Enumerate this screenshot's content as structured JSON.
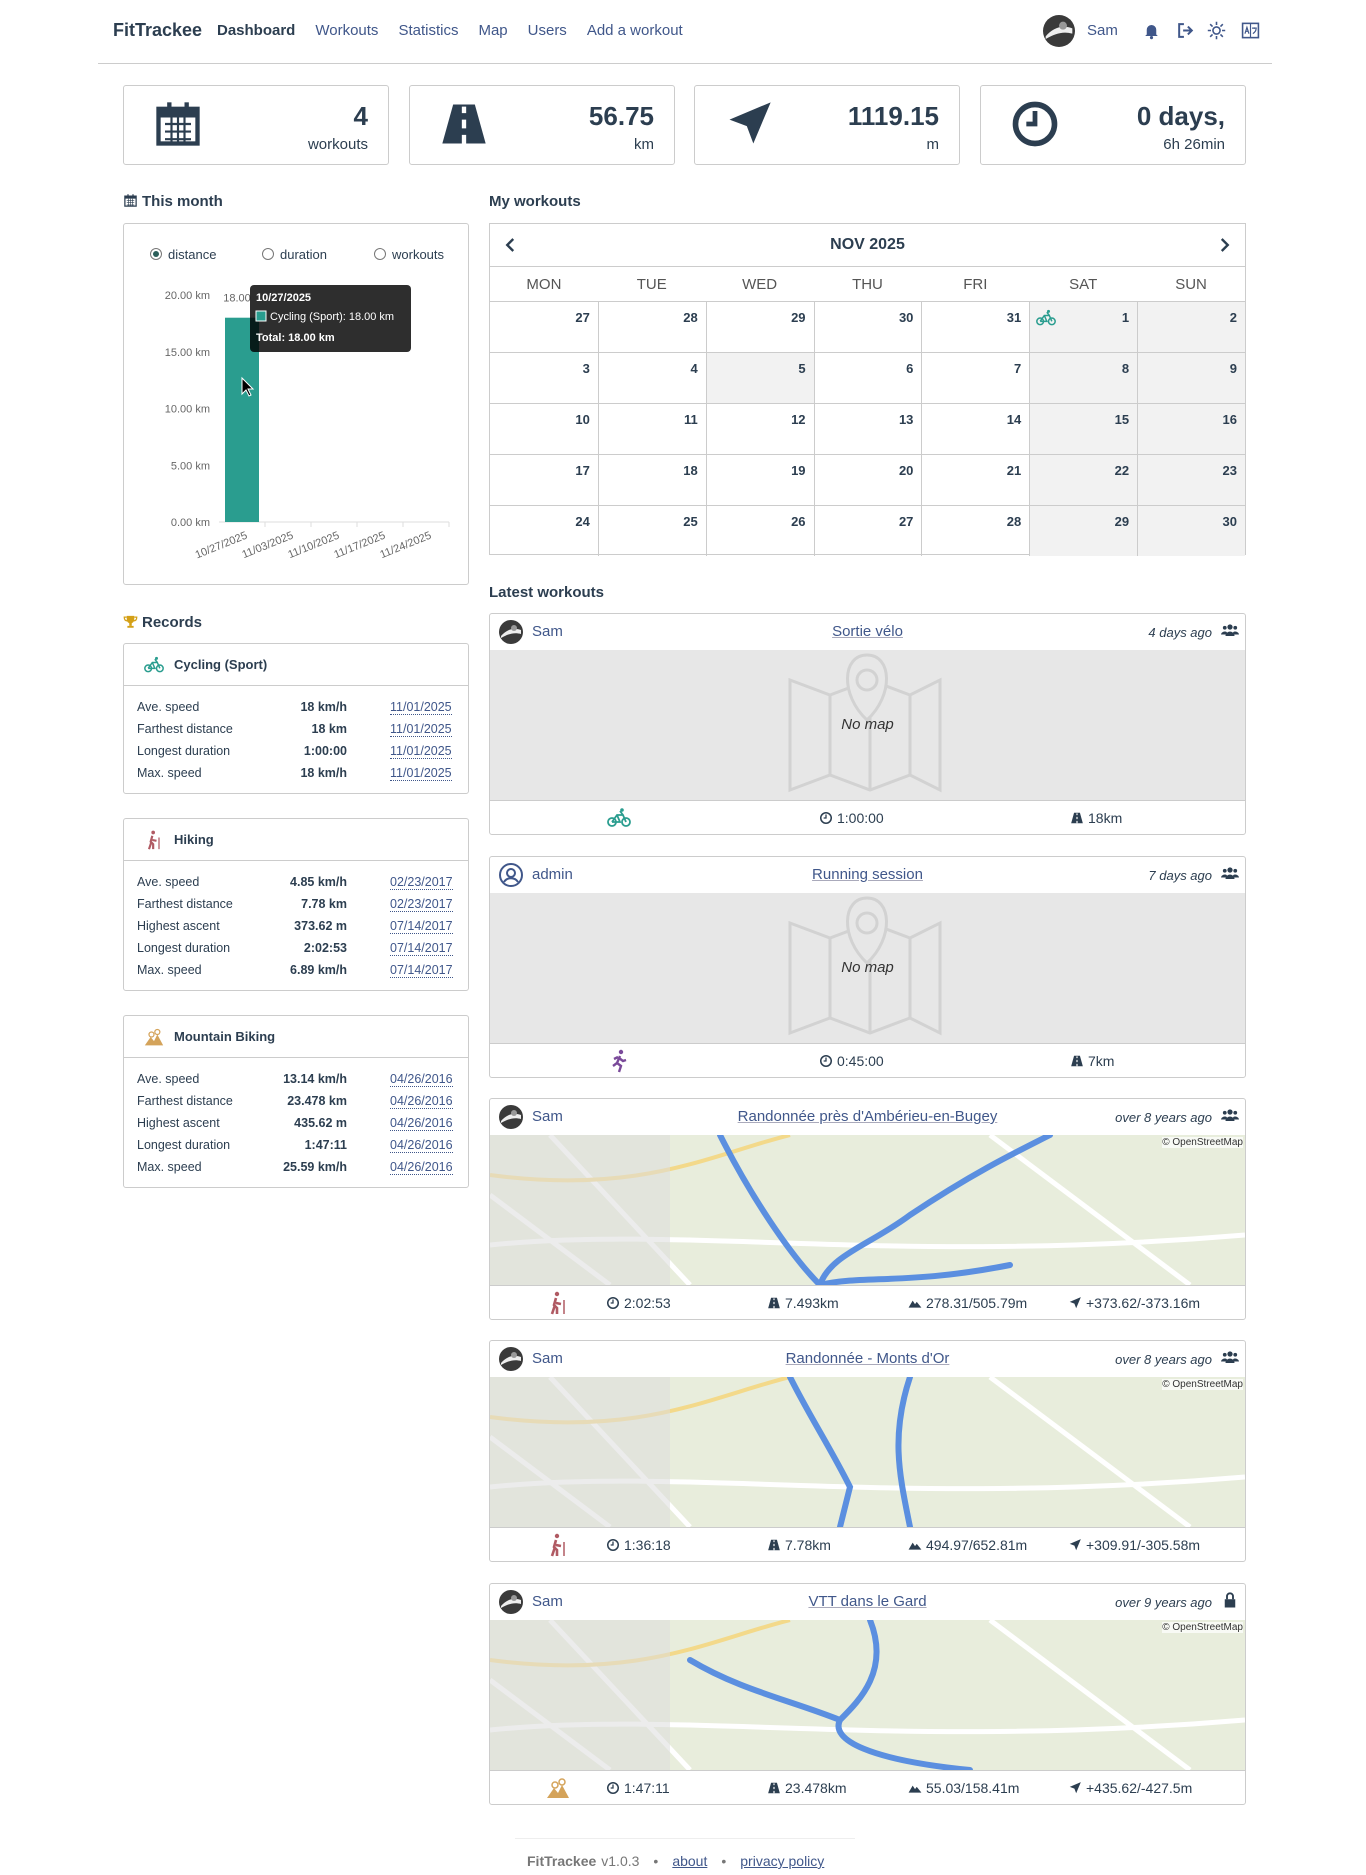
{
  "navbar": {
    "brand": "FitTrackee",
    "links": [
      "Dashboard",
      "Workouts",
      "Statistics",
      "Map",
      "Users",
      "Add a workout"
    ],
    "user": "Sam"
  },
  "stats": [
    {
      "value": "4",
      "unit": "workouts"
    },
    {
      "value": "56.75",
      "unit": "km"
    },
    {
      "value": "1119.15",
      "unit": "m"
    },
    {
      "value": "0 days,",
      "unit": "6h 26min"
    }
  ],
  "this_month": {
    "title": "This month",
    "options": [
      "distance",
      "duration",
      "workouts"
    ],
    "selected": 0,
    "tooltip": {
      "title": "10/27/2025",
      "item": "Cycling (Sport): 18.00 km",
      "total": "Total: 18.00 km"
    }
  },
  "chart_data": {
    "type": "bar",
    "categories": [
      "10/27/2025",
      "11/03/2025",
      "11/10/2025",
      "11/17/2025",
      "11/24/2025"
    ],
    "series": [
      {
        "name": "Cycling (Sport)",
        "color": "#2a9d8f",
        "values": [
          18,
          0,
          0,
          0,
          0
        ],
        "value_labels": [
          "18.00",
          null,
          null,
          null,
          null
        ]
      }
    ],
    "ylim": [
      0,
      20
    ],
    "yticks": [
      {
        "value": 0,
        "label": "0.00 km"
      },
      {
        "value": 5,
        "label": "5.00 km"
      },
      {
        "value": 10,
        "label": "10.00 km"
      },
      {
        "value": 15,
        "label": "15.00 km"
      },
      {
        "value": 20,
        "label": "20.00 km"
      }
    ],
    "grid": false
  },
  "records": {
    "title": "Records",
    "sports": [
      {
        "sport": "Cycling (Sport)",
        "rows": [
          [
            "Ave. speed",
            "18 km/h",
            "11/01/2025"
          ],
          [
            "Farthest distance",
            "18 km",
            "11/01/2025"
          ],
          [
            "Longest duration",
            "1:00:00",
            "11/01/2025"
          ],
          [
            "Max. speed",
            "18 km/h",
            "11/01/2025"
          ]
        ]
      },
      {
        "sport": "Hiking",
        "rows": [
          [
            "Ave. speed",
            "4.85 km/h",
            "02/23/2017"
          ],
          [
            "Farthest distance",
            "7.78 km",
            "02/23/2017"
          ],
          [
            "Highest ascent",
            "373.62 m",
            "07/14/2017"
          ],
          [
            "Longest duration",
            "2:02:53",
            "07/14/2017"
          ],
          [
            "Max. speed",
            "6.89 km/h",
            "07/14/2017"
          ]
        ]
      },
      {
        "sport": "Mountain Biking",
        "rows": [
          [
            "Ave. speed",
            "13.14 km/h",
            "04/26/2016"
          ],
          [
            "Farthest distance",
            "23.478 km",
            "04/26/2016"
          ],
          [
            "Highest ascent",
            "435.62 m",
            "04/26/2016"
          ],
          [
            "Longest duration",
            "1:47:11",
            "04/26/2016"
          ],
          [
            "Max. speed",
            "25.59 km/h",
            "04/26/2016"
          ]
        ]
      }
    ]
  },
  "my_workouts": {
    "title": "My workouts",
    "calendar": {
      "month": "NOV 2025",
      "weekdays": [
        "MON",
        "TUE",
        "WED",
        "THU",
        "FRI",
        "SAT",
        "SUN"
      ],
      "weeks": [
        [
          27,
          28,
          29,
          30,
          31,
          1,
          2
        ],
        [
          3,
          4,
          5,
          6,
          7,
          8,
          9
        ],
        [
          10,
          11,
          12,
          13,
          14,
          15,
          16
        ],
        [
          17,
          18,
          19,
          20,
          21,
          22,
          23
        ],
        [
          24,
          25,
          26,
          27,
          28,
          29,
          30
        ]
      ]
    }
  },
  "latest_workouts": {
    "title": "Latest workouts",
    "items": [
      {
        "user": "Sam",
        "title": "Sortie vélo",
        "ago": "4 days ago",
        "map": "No map",
        "stats": [
          "1:00:00",
          "18km"
        ]
      },
      {
        "user": "admin",
        "title": "Running session",
        "ago": "7 days ago",
        "map": "No map",
        "stats": [
          "0:45:00",
          "7km"
        ]
      },
      {
        "user": "Sam",
        "title": "Randonnée près d'Ambérieu-en-Bugey",
        "ago": "over 8 years ago",
        "map_credit": "© OpenStreetMap",
        "stats": [
          "2:02:53",
          "7.493km",
          "278.31/505.79m",
          "+373.62/-373.16m"
        ]
      },
      {
        "user": "Sam",
        "title": "Randonnée - Monts d'Or",
        "ago": "over 8 years ago",
        "map_credit": "© OpenStreetMap",
        "stats": [
          "1:36:18",
          "7.78km",
          "494.97/652.81m",
          "+309.91/-305.58m"
        ]
      },
      {
        "user": "Sam",
        "title": "VTT dans le Gard",
        "ago": "over 9 years ago",
        "map_credit": "© OpenStreetMap",
        "stats": [
          "1:47:11",
          "23.478km",
          "55.03/158.41m",
          "+435.62/-427.5m"
        ]
      }
    ]
  },
  "footer": {
    "brand": "FitTrackee",
    "version": "v1.0.3",
    "separator": "•",
    "links": [
      "about",
      "privacy policy"
    ]
  }
}
